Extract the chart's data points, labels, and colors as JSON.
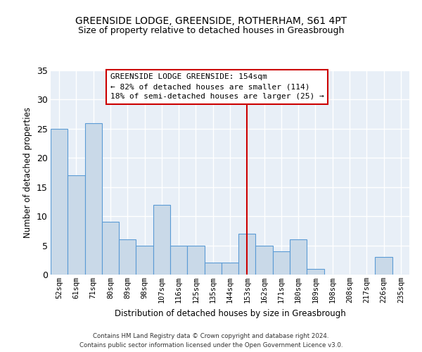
{
  "title_line1": "GREENSIDE LODGE, GREENSIDE, ROTHERHAM, S61 4PT",
  "title_line2": "Size of property relative to detached houses in Greasbrough",
  "xlabel": "Distribution of detached houses by size in Greasbrough",
  "ylabel": "Number of detached properties",
  "categories": [
    "52sqm",
    "61sqm",
    "71sqm",
    "80sqm",
    "89sqm",
    "98sqm",
    "107sqm",
    "116sqm",
    "125sqm",
    "135sqm",
    "144sqm",
    "153sqm",
    "162sqm",
    "171sqm",
    "180sqm",
    "189sqm",
    "198sqm",
    "208sqm",
    "217sqm",
    "226sqm",
    "235sqm"
  ],
  "values": [
    25,
    17,
    26,
    9,
    6,
    5,
    12,
    5,
    5,
    2,
    2,
    7,
    5,
    4,
    6,
    1,
    0,
    0,
    0,
    3,
    0
  ],
  "bar_color": "#c9d9e8",
  "bar_edgecolor": "#5b9bd5",
  "property_line_color": "#cc0000",
  "property_line_index": 11,
  "ylim": [
    0,
    35
  ],
  "yticks": [
    0,
    5,
    10,
    15,
    20,
    25,
    30,
    35
  ],
  "annotation_title": "GREENSIDE LODGE GREENSIDE: 154sqm",
  "annotation_line2": "← 82% of detached houses are smaller (114)",
  "annotation_line3": "18% of semi-detached houses are larger (25) →",
  "annotation_box_color": "#ffffff",
  "annotation_box_edgecolor": "#cc0000",
  "footer_line1": "Contains HM Land Registry data © Crown copyright and database right 2024.",
  "footer_line2": "Contains public sector information licensed under the Open Government Licence v3.0.",
  "background_color": "#e8eff7",
  "grid_color": "#ffffff",
  "fig_background": "#ffffff"
}
